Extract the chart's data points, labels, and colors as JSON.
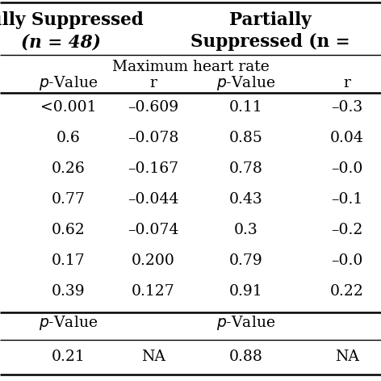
{
  "header_row1_left": "Fully Suppressed",
  "header_row1_right": "Partially",
  "header_row2_left": "(n = 48)",
  "header_row2_right": "Suppressed (n =",
  "subheader": "Maximum heart rate",
  "col_headers": [
    "p-Value",
    "r",
    "p-Value",
    "r"
  ],
  "data_rows": [
    [
      "<0.001",
      "–0.609",
      "0.11",
      "–0.3"
    ],
    [
      "0.6",
      "–0.078",
      "0.85",
      "0.04"
    ],
    [
      "0.26",
      "–0.167",
      "0.78",
      "–0.0"
    ],
    [
      "0.77",
      "–0.044",
      "0.43",
      "–0.1"
    ],
    [
      "0.62",
      "–0.074",
      "0.3",
      "–0.2"
    ],
    [
      "0.17",
      "0.200",
      "0.79",
      "–0.0"
    ],
    [
      "0.39",
      "0.127",
      "0.91",
      "0.22"
    ]
  ],
  "pvalue_row": [
    "p-Value",
    "",
    "p-Value",
    ""
  ],
  "last_row": [
    "0.21",
    "NA",
    "0.88",
    "NA"
  ],
  "bg_color": "#ffffff",
  "text_color": "#000000",
  "fontsize": 13.5,
  "header_fontsize": 15.5
}
